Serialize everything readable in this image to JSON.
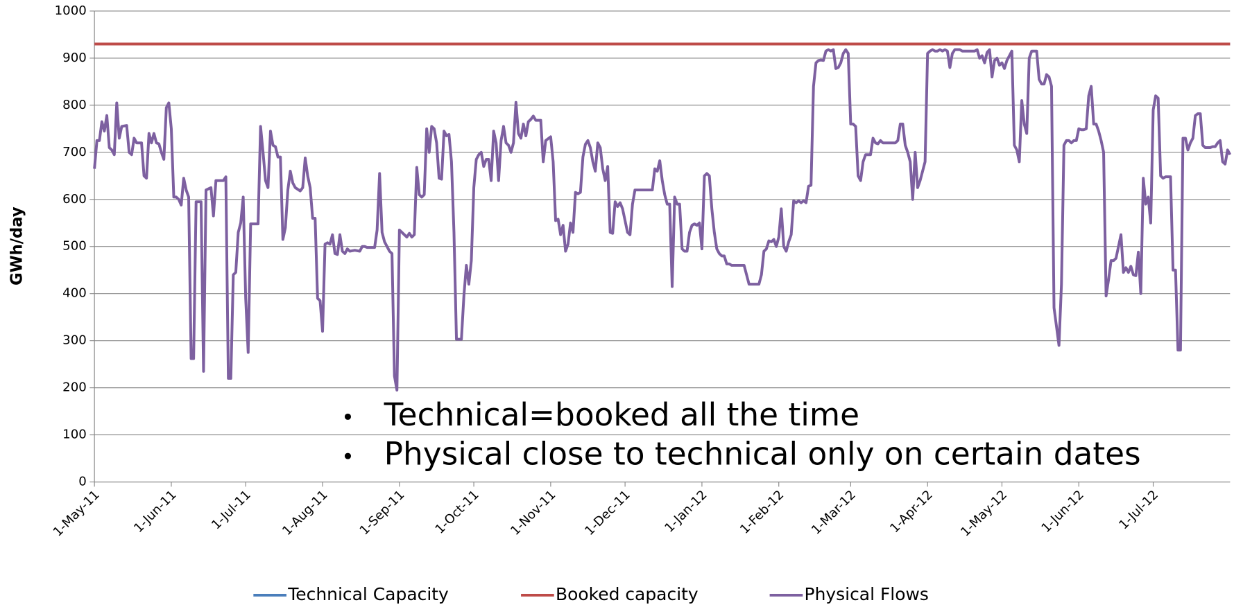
{
  "chart_data": {
    "type": "line",
    "y_label": "GWh/day",
    "annotations": [
      "Technical=booked all the time",
      "Physical close to technical only on certain dates"
    ],
    "ylim": [
      0,
      1000
    ],
    "yticks": [
      0,
      100,
      200,
      300,
      400,
      500,
      600,
      700,
      800,
      900,
      1000
    ],
    "xlim": [
      "2011-05-01",
      "2012-08-01"
    ],
    "xticks": [
      {
        "value": "2011-05-01",
        "label": "1-May-11"
      },
      {
        "value": "2011-06-01",
        "label": "1-Jun-11"
      },
      {
        "value": "2011-07-01",
        "label": "1-Jul-11"
      },
      {
        "value": "2011-08-01",
        "label": "1-Aug-11"
      },
      {
        "value": "2011-09-01",
        "label": "1-Sep-11"
      },
      {
        "value": "2011-10-01",
        "label": "1-Oct-11"
      },
      {
        "value": "2011-11-01",
        "label": "1-Nov-11"
      },
      {
        "value": "2011-12-01",
        "label": "1-Dec-11"
      },
      {
        "value": "2012-01-01",
        "label": "1-Jan-12"
      },
      {
        "value": "2012-02-01",
        "label": "1-Feb-12"
      },
      {
        "value": "2012-03-01",
        "label": "1-Mar-12"
      },
      {
        "value": "2012-04-01",
        "label": "1-Apr-12"
      },
      {
        "value": "2012-05-01",
        "label": "1-May-12"
      },
      {
        "value": "2012-06-01",
        "label": "1-Jun-12"
      },
      {
        "value": "2012-07-01",
        "label": "1-Jul-12"
      }
    ],
    "grid": true,
    "legend": "bottom",
    "series": [
      {
        "name": "Technical Capacity",
        "color": "#4a7ebb",
        "x": [
          "2011-05-01",
          "2012-08-01"
        ],
        "values": [
          930,
          930
        ]
      },
      {
        "name": "Booked capacity",
        "color": "#be4b48",
        "x": [
          "2011-05-01",
          "2012-08-01"
        ],
        "values": [
          930,
          930
        ]
      },
      {
        "name": "Physical Flows",
        "color": "#7d60a0",
        "x": [
          "2011-05-01",
          "2011-05-02",
          "2011-05-03",
          "2011-05-04",
          "2011-05-05",
          "2011-05-06",
          "2011-05-07",
          "2011-05-08",
          "2011-05-09",
          "2011-05-10",
          "2011-05-11",
          "2011-05-12",
          "2011-05-14",
          "2011-05-15",
          "2011-05-16",
          "2011-05-17",
          "2011-05-18",
          "2011-05-20",
          "2011-05-21",
          "2011-05-22",
          "2011-05-23",
          "2011-05-24",
          "2011-05-25",
          "2011-05-26",
          "2011-05-27",
          "2011-05-28",
          "2011-05-29",
          "2011-05-30",
          "2011-05-31",
          "2011-06-01",
          "2011-06-02",
          "2011-06-03",
          "2011-06-04",
          "2011-06-05",
          "2011-06-06",
          "2011-06-07",
          "2011-06-08",
          "2011-06-09",
          "2011-06-10",
          "2011-06-11",
          "2011-06-13",
          "2011-06-14",
          "2011-06-15",
          "2011-06-17",
          "2011-06-18",
          "2011-06-19",
          "2011-06-22",
          "2011-06-23",
          "2011-06-24",
          "2011-06-25",
          "2011-06-26",
          "2011-06-27",
          "2011-06-28",
          "2011-06-29",
          "2011-06-30",
          "2011-07-01",
          "2011-07-02",
          "2011-07-03",
          "2011-07-06",
          "2011-07-07",
          "2011-07-08",
          "2011-07-09",
          "2011-07-10",
          "2011-07-11",
          "2011-07-12",
          "2011-07-13",
          "2011-07-14",
          "2011-07-15",
          "2011-07-16",
          "2011-07-17",
          "2011-07-18",
          "2011-07-19",
          "2011-07-20",
          "2011-07-21",
          "2011-07-23",
          "2011-07-24",
          "2011-07-25",
          "2011-07-26",
          "2011-07-27",
          "2011-07-28",
          "2011-07-29",
          "2011-07-30",
          "2011-07-31",
          "2011-08-01",
          "2011-08-02",
          "2011-08-03",
          "2011-08-04",
          "2011-08-05",
          "2011-08-06",
          "2011-08-07",
          "2011-08-08",
          "2011-08-09",
          "2011-08-10",
          "2011-08-11",
          "2011-08-12",
          "2011-08-14",
          "2011-08-16",
          "2011-08-17",
          "2011-08-18",
          "2011-08-19",
          "2011-08-22",
          "2011-08-23",
          "2011-08-24",
          "2011-08-25",
          "2011-08-26",
          "2011-08-28",
          "2011-08-29",
          "2011-08-30",
          "2011-08-31",
          "2011-09-01",
          "2011-09-02",
          "2011-09-03",
          "2011-09-04",
          "2011-09-05",
          "2011-09-06",
          "2011-09-07",
          "2011-09-08",
          "2011-09-09",
          "2011-09-10",
          "2011-09-11",
          "2011-09-12",
          "2011-09-13",
          "2011-09-14",
          "2011-09-15",
          "2011-09-16",
          "2011-09-17",
          "2011-09-18",
          "2011-09-19",
          "2011-09-20",
          "2011-09-21",
          "2011-09-22",
          "2011-09-23",
          "2011-09-24",
          "2011-09-26",
          "2011-09-27",
          "2011-09-28",
          "2011-09-29",
          "2011-09-30",
          "2011-10-01",
          "2011-10-02",
          "2011-10-03",
          "2011-10-04",
          "2011-10-05",
          "2011-10-06",
          "2011-10-07",
          "2011-10-08",
          "2011-10-09",
          "2011-10-10",
          "2011-10-11",
          "2011-10-12",
          "2011-10-13",
          "2011-10-14",
          "2011-10-15",
          "2011-10-16",
          "2011-10-17",
          "2011-10-18",
          "2011-10-19",
          "2011-10-20",
          "2011-10-21",
          "2011-10-22",
          "2011-10-23",
          "2011-10-24",
          "2011-10-25",
          "2011-10-26",
          "2011-10-28",
          "2011-10-29",
          "2011-10-30",
          "2011-11-01",
          "2011-11-02",
          "2011-11-03",
          "2011-11-04",
          "2011-11-05",
          "2011-11-06",
          "2011-11-07",
          "2011-11-08",
          "2011-11-09",
          "2011-11-10",
          "2011-11-11",
          "2011-11-12",
          "2011-11-13",
          "2011-11-14",
          "2011-11-15",
          "2011-11-16",
          "2011-11-17",
          "2011-11-18",
          "2011-11-19",
          "2011-11-20",
          "2011-11-21",
          "2011-11-22",
          "2011-11-23",
          "2011-11-24",
          "2011-11-25",
          "2011-11-26",
          "2011-11-27",
          "2011-11-28",
          "2011-11-29",
          "2011-11-30",
          "2011-12-01",
          "2011-12-02",
          "2011-12-03",
          "2011-12-04",
          "2011-12-05",
          "2011-12-07",
          "2011-12-12",
          "2011-12-13",
          "2011-12-14",
          "2011-12-15",
          "2011-12-16",
          "2011-12-17",
          "2011-12-18",
          "2011-12-19",
          "2011-12-20",
          "2011-12-21",
          "2011-12-22",
          "2011-12-23",
          "2011-12-24",
          "2011-12-25",
          "2011-12-26",
          "2011-12-27",
          "2011-12-28",
          "2011-12-29",
          "2011-12-30",
          "2011-12-31",
          "2012-01-01",
          "2012-01-02",
          "2012-01-03",
          "2012-01-04",
          "2012-01-05",
          "2012-01-06",
          "2012-01-07",
          "2012-01-08",
          "2012-01-09",
          "2012-01-10",
          "2012-01-11",
          "2012-01-12",
          "2012-01-13",
          "2012-01-18",
          "2012-01-19",
          "2012-01-20",
          "2012-01-24",
          "2012-01-25",
          "2012-01-26",
          "2012-01-27",
          "2012-01-28",
          "2012-01-29",
          "2012-01-30",
          "2012-01-31",
          "2012-02-01",
          "2012-02-02",
          "2012-02-03",
          "2012-02-04",
          "2012-02-05",
          "2012-02-06",
          "2012-02-07",
          "2012-02-08",
          "2012-02-09",
          "2012-02-10",
          "2012-02-11",
          "2012-02-12",
          "2012-02-13",
          "2012-02-14",
          "2012-02-15",
          "2012-02-16",
          "2012-02-17",
          "2012-02-18",
          "2012-02-19",
          "2012-02-20",
          "2012-02-21",
          "2012-02-22",
          "2012-02-23",
          "2012-02-24",
          "2012-02-25",
          "2012-02-26",
          "2012-02-27",
          "2012-02-28",
          "2012-02-29",
          "2012-03-01",
          "2012-03-02",
          "2012-03-03",
          "2012-03-04",
          "2012-03-05",
          "2012-03-06",
          "2012-03-07",
          "2012-03-08",
          "2012-03-09",
          "2012-03-10",
          "2012-03-11",
          "2012-03-12",
          "2012-03-13",
          "2012-03-14",
          "2012-03-19",
          "2012-03-20",
          "2012-03-21",
          "2012-03-22",
          "2012-03-23",
          "2012-03-24",
          "2012-03-25",
          "2012-03-26",
          "2012-03-27",
          "2012-03-28",
          "2012-03-29",
          "2012-03-30",
          "2012-03-31",
          "2012-04-01",
          "2012-04-02",
          "2012-04-03",
          "2012-04-04",
          "2012-04-05",
          "2012-04-06",
          "2012-04-07",
          "2012-04-08",
          "2012-04-09",
          "2012-04-10",
          "2012-04-11",
          "2012-04-12",
          "2012-04-13",
          "2012-04-14",
          "2012-04-15",
          "2012-04-20",
          "2012-04-21",
          "2012-04-22",
          "2012-04-23",
          "2012-04-24",
          "2012-04-25",
          "2012-04-26",
          "2012-04-27",
          "2012-04-28",
          "2012-04-29",
          "2012-04-30",
          "2012-05-01",
          "2012-05-02",
          "2012-05-03",
          "2012-05-04",
          "2012-05-05",
          "2012-05-06",
          "2012-05-07",
          "2012-05-08",
          "2012-05-09",
          "2012-05-10",
          "2012-05-11",
          "2012-05-12",
          "2012-05-13",
          "2012-05-15",
          "2012-05-16",
          "2012-05-17",
          "2012-05-18",
          "2012-05-19",
          "2012-05-20",
          "2012-05-21",
          "2012-05-22",
          "2012-05-23",
          "2012-05-24",
          "2012-05-25",
          "2012-05-26",
          "2012-05-27",
          "2012-05-28",
          "2012-05-29",
          "2012-05-30",
          "2012-05-31",
          "2012-06-01",
          "2012-06-02",
          "2012-06-03",
          "2012-06-04",
          "2012-06-05",
          "2012-06-06",
          "2012-06-07",
          "2012-06-08",
          "2012-06-09",
          "2012-06-10",
          "2012-06-11",
          "2012-06-12",
          "2012-06-13",
          "2012-06-14",
          "2012-06-15",
          "2012-06-16",
          "2012-06-17",
          "2012-06-18",
          "2012-06-19",
          "2012-06-20",
          "2012-06-21",
          "2012-06-22",
          "2012-06-23",
          "2012-06-24",
          "2012-06-25",
          "2012-06-26",
          "2012-06-27",
          "2012-06-28",
          "2012-06-29",
          "2012-06-30",
          "2012-07-01",
          "2012-07-02",
          "2012-07-03",
          "2012-07-04",
          "2012-07-05",
          "2012-07-06",
          "2012-07-07",
          "2012-07-08",
          "2012-07-09",
          "2012-07-10",
          "2012-07-11",
          "2012-07-12",
          "2012-07-13",
          "2012-07-14",
          "2012-07-15",
          "2012-07-16",
          "2012-07-17",
          "2012-07-18",
          "2012-07-19",
          "2012-07-20",
          "2012-07-21",
          "2012-07-22",
          "2012-07-23",
          "2012-07-24",
          "2012-07-25",
          "2012-07-26",
          "2012-07-27",
          "2012-07-28",
          "2012-07-29",
          "2012-07-30",
          "2012-07-31",
          "2012-08-01"
        ],
        "values": [
          665,
          725,
          725,
          765,
          745,
          778,
          710,
          705,
          695,
          805,
          730,
          755,
          757,
          700,
          695,
          730,
          720,
          720,
          650,
          645,
          740,
          720,
          740,
          720,
          718,
          700,
          685,
          795,
          805,
          750,
          605,
          605,
          600,
          588,
          645,
          620,
          605,
          262,
          262,
          595,
          595,
          235,
          620,
          625,
          565,
          640,
          640,
          648,
          220,
          220,
          440,
          445,
          530,
          550,
          605,
          390,
          275,
          548,
          548,
          755,
          700,
          640,
          625,
          745,
          715,
          712,
          690,
          690,
          515,
          540,
          620,
          660,
          635,
          625,
          618,
          625,
          688,
          650,
          625,
          560,
          560,
          390,
          385,
          320,
          505,
          508,
          505,
          525,
          485,
          483,
          525,
          490,
          485,
          495,
          490,
          492,
          490,
          500,
          500,
          498,
          498,
          535,
          655,
          530,
          510,
          490,
          485,
          225,
          195,
          535,
          530,
          525,
          520,
          528,
          520,
          525,
          668,
          610,
          605,
          610,
          750,
          700,
          755,
          750,
          720,
          645,
          643,
          745,
          735,
          738,
          680,
          530,
          303,
          303,
          395,
          460,
          420,
          470,
          625,
          685,
          695,
          700,
          670,
          685,
          685,
          640,
          745,
          720,
          640,
          725,
          755,
          720,
          715,
          700,
          720,
          806,
          740,
          730,
          760,
          735,
          765,
          770,
          777,
          768,
          768,
          680,
          725,
          733,
          680,
          555,
          558,
          525,
          545,
          490,
          505,
          550,
          530,
          615,
          612,
          615,
          690,
          717,
          725,
          710,
          680,
          660,
          720,
          710,
          665,
          640,
          670,
          530,
          528,
          595,
          585,
          593,
          580,
          555,
          530,
          525,
          590,
          620,
          620,
          620,
          665,
          660,
          682,
          640,
          610,
          590,
          590,
          415,
          605,
          590,
          590,
          495,
          490,
          490,
          530,
          545,
          548,
          545,
          550,
          495,
          650,
          655,
          650,
          580,
          530,
          495,
          485,
          480,
          480,
          463,
          463,
          460,
          460,
          440,
          420,
          420,
          440,
          490,
          495,
          512,
          510,
          515,
          500,
          520,
          580,
          500,
          490,
          510,
          525,
          597,
          593,
          597,
          593,
          597,
          593,
          628,
          630,
          840,
          890,
          895,
          896,
          895,
          915,
          918,
          915,
          918,
          878,
          880,
          890,
          910,
          918,
          910,
          760,
          760,
          755,
          650,
          640,
          680,
          695,
          695,
          695,
          730,
          720,
          718,
          725,
          720,
          720,
          725,
          760,
          760,
          715,
          700,
          680,
          600,
          700,
          625,
          640,
          660,
          680,
          910,
          915,
          918,
          915,
          915,
          918,
          915,
          918,
          915,
          880,
          910,
          918,
          918,
          918,
          915,
          915,
          918,
          900,
          905,
          890,
          912,
          918,
          860,
          895,
          900,
          885,
          890,
          878,
          895,
          905,
          915,
          715,
          705,
          680,
          810,
          760,
          740,
          900,
          915,
          915,
          855,
          845,
          845,
          865,
          860,
          840,
          370,
          330,
          290,
          420,
          715,
          725,
          725,
          720,
          725,
          725,
          750,
          748,
          748,
          750,
          820,
          840,
          760,
          760,
          745,
          725,
          700,
          395,
          430,
          470,
          470,
          475,
          500,
          525,
          445,
          455,
          445,
          458,
          440,
          438,
          488,
          400,
          645,
          590,
          605,
          550,
          790,
          820,
          815,
          650,
          645,
          648,
          648,
          648,
          450,
          450,
          280,
          280,
          730,
          730,
          705,
          720,
          730,
          778,
          782,
          782,
          715,
          710,
          710,
          710,
          712,
          712,
          720,
          725,
          680,
          675,
          705,
          695
        ]
      }
    ]
  }
}
